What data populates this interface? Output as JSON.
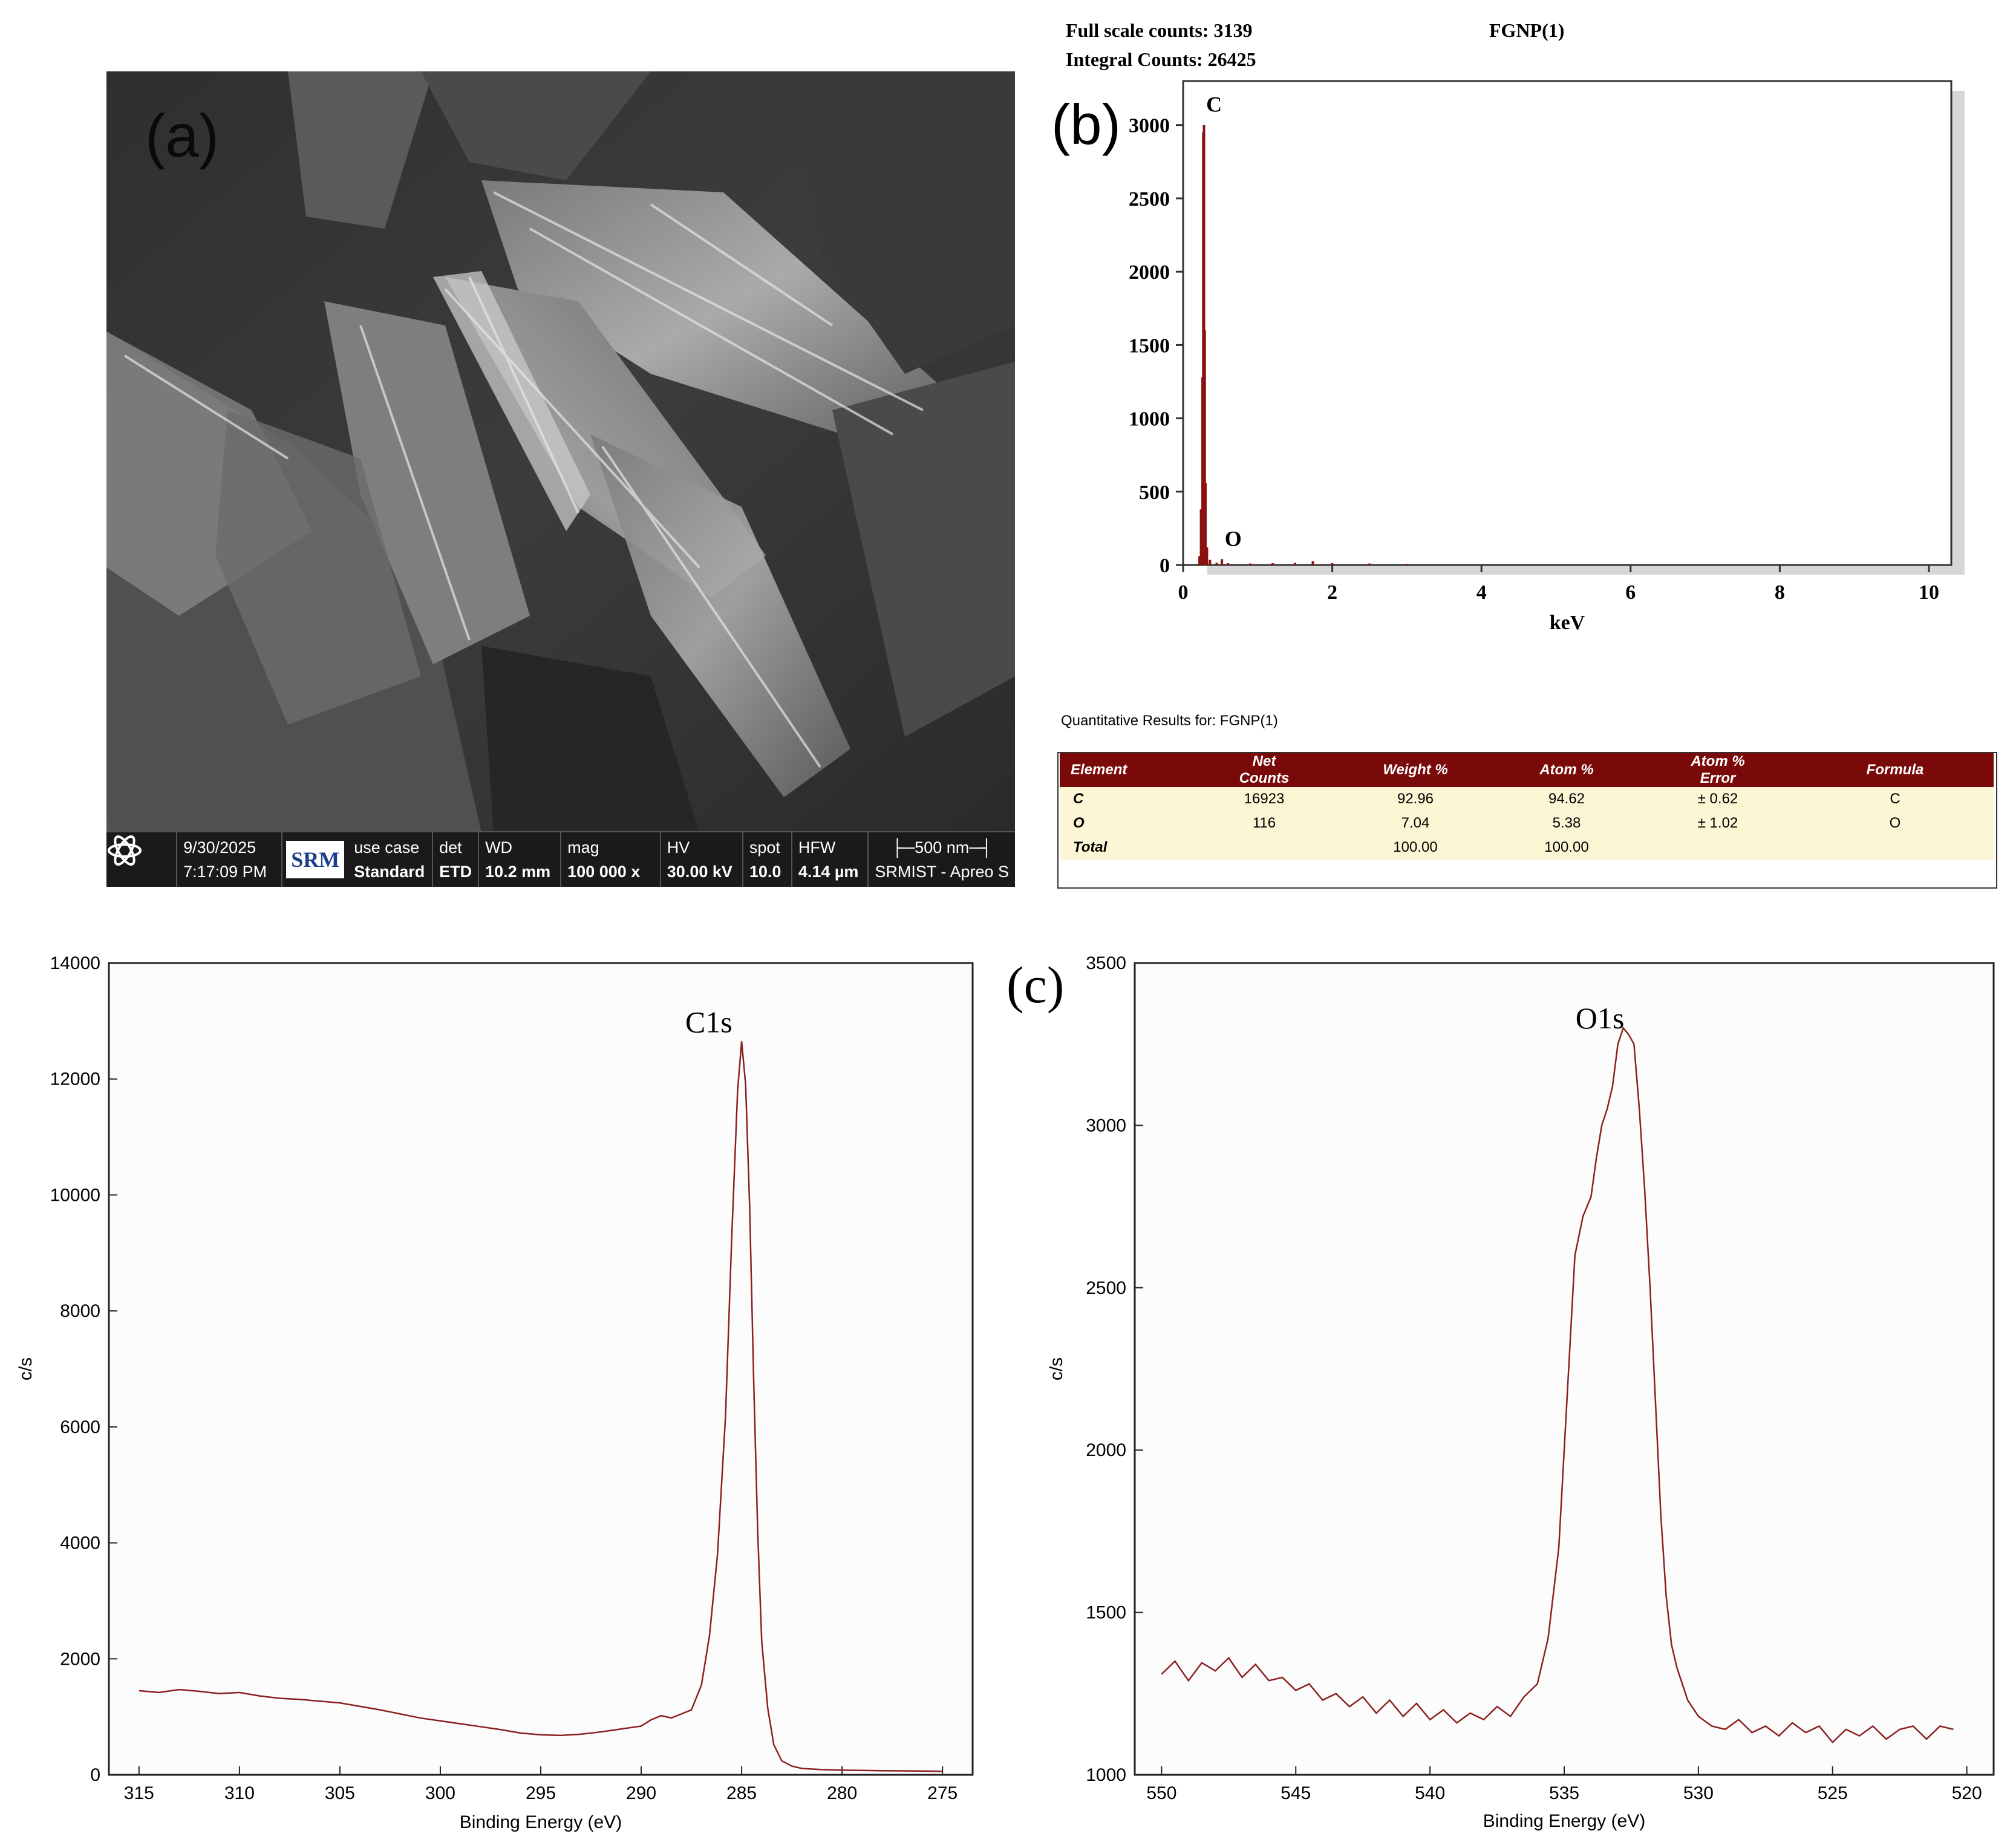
{
  "sem": {
    "panel_label": "(a)",
    "date": "9/30/2025",
    "time": "7:17:09 PM",
    "logo_text": "SRM",
    "use_case_label": "use case",
    "use_case": "Standard",
    "det_label": "det",
    "det": "ETD",
    "wd_label": "WD",
    "wd": "10.2 mm",
    "mag_label": "mag",
    "mag": "100 000 x",
    "hv_label": "HV",
    "hv": "30.00 kV",
    "spot_label": "spot",
    "spot": "10.0",
    "hfw_label": "HFW",
    "hfw": "4.14 µm",
    "scale_bar": "500 nm",
    "instrument": "SRMIST - Apreo S"
  },
  "eds_header": {
    "full_scale": "Full scale counts: 3139",
    "integral": "Integral Counts: 26425",
    "sample": "FGNP(1)",
    "panel_label": "(b)"
  },
  "table": {
    "caption": "Quantitative Results for: FGNP(1)",
    "headers": [
      {
        "l1": "Element",
        "l2": ""
      },
      {
        "l1": "Net",
        "l2": "Counts"
      },
      {
        "l1": "Weight %",
        "l2": ""
      },
      {
        "l1": "Atom %",
        "l2": ""
      },
      {
        "l1": "Atom %",
        "l2": "Error"
      },
      {
        "l1": "Formula",
        "l2": ""
      }
    ],
    "rows": [
      [
        "C",
        "16923",
        "92.96",
        "94.62",
        "± 0.62",
        "C"
      ],
      [
        "O",
        "116",
        "7.04",
        "5.38",
        "± 1.02",
        "O"
      ],
      [
        "Total",
        "",
        "100.00",
        "100.00",
        "",
        ""
      ]
    ]
  },
  "xps_panel_label": "(c)",
  "chart_data": [
    {
      "type": "bar",
      "panel": "(b)",
      "xlabel": "keV",
      "ylabel": "",
      "xlim": [
        0,
        10.3
      ],
      "ylim": [
        0,
        3300
      ],
      "xticks": [
        0,
        2,
        4,
        6,
        8,
        10
      ],
      "yticks": [
        0,
        500,
        1000,
        1500,
        2000,
        2500,
        3000
      ],
      "peaks": [
        {
          "label": "C",
          "x": 0.277,
          "y": 3000
        },
        {
          "label": "O",
          "x": 0.525,
          "y": 40
        }
      ],
      "series": [
        {
          "color": "#8b1010",
          "x": [
            0.19,
            0.22,
            0.24,
            0.26,
            0.27,
            0.28,
            0.29,
            0.3,
            0.32,
            0.36,
            0.45,
            0.52,
            0.6,
            0.9,
            1.2,
            1.5,
            1.74,
            2.0,
            2.5,
            3.0,
            4.0,
            6.0,
            8.0,
            10.0
          ],
          "values": [
            0,
            60,
            380,
            1280,
            2950,
            3000,
            1600,
            560,
            120,
            35,
            15,
            40,
            12,
            10,
            12,
            14,
            25,
            12,
            10,
            8,
            6,
            4,
            3,
            2
          ]
        }
      ]
    },
    {
      "type": "line",
      "panel": "XPS C1s",
      "xlabel": "Binding Energy (eV)",
      "ylabel": "c/s",
      "xlim": [
        316.5,
        273.5
      ],
      "ylim": [
        0,
        14000
      ],
      "xticks": [
        315,
        310,
        305,
        300,
        295,
        290,
        285,
        280,
        275
      ],
      "yticks": [
        0,
        2000,
        4000,
        6000,
        8000,
        10000,
        12000,
        14000
      ],
      "annotations": [
        {
          "text": "C1s",
          "x": 285.7,
          "y": 12700
        }
      ],
      "series": [
        {
          "color": "#8b2020",
          "x": [
            315,
            314,
            313,
            312,
            311,
            310,
            309,
            308,
            307,
            306,
            305,
            304,
            303,
            302,
            301,
            300,
            299,
            298,
            297,
            296,
            295,
            294,
            293,
            292,
            291,
            290,
            289.5,
            289,
            288.5,
            288,
            287.5,
            287,
            286.6,
            286.2,
            285.8,
            285.5,
            285.2,
            285.0,
            284.8,
            284.6,
            284.4,
            284.2,
            284.0,
            283.7,
            283.4,
            283.0,
            282.5,
            282,
            281,
            280,
            278,
            276,
            275
          ],
          "values": [
            1450,
            1420,
            1470,
            1440,
            1400,
            1420,
            1360,
            1320,
            1300,
            1270,
            1240,
            1180,
            1120,
            1050,
            980,
            930,
            880,
            830,
            780,
            720,
            690,
            680,
            700,
            740,
            790,
            840,
            950,
            1020,
            980,
            1050,
            1120,
            1550,
            2400,
            3800,
            6200,
            9200,
            11800,
            12650,
            11900,
            9800,
            6800,
            4200,
            2300,
            1150,
            520,
            240,
            150,
            110,
            90,
            80,
            70,
            65,
            60
          ]
        }
      ]
    },
    {
      "type": "line",
      "panel": "XPS O1s",
      "xlabel": "Binding Energy (eV)",
      "ylabel": "c/s",
      "xlim": [
        551,
        519
      ],
      "ylim": [
        1000,
        3500
      ],
      "xticks": [
        550,
        545,
        540,
        535,
        530,
        525,
        520
      ],
      "yticks": [
        1000,
        1500,
        2000,
        2500,
        3000,
        3500
      ],
      "annotations": [
        {
          "text": "O1s",
          "x": 533.0,
          "y": 3280
        }
      ],
      "series": [
        {
          "color": "#8b2020",
          "x": [
            550,
            549.5,
            549,
            548.5,
            548,
            547.5,
            547,
            546.5,
            546,
            545.5,
            545,
            544.5,
            544,
            543.5,
            543,
            542.5,
            542,
            541.5,
            541,
            540.5,
            540,
            539.5,
            539,
            538.5,
            538,
            537.5,
            537,
            536.5,
            536,
            535.6,
            535.2,
            534.9,
            534.6,
            534.3,
            534.0,
            533.8,
            533.6,
            533.4,
            533.2,
            533.0,
            532.8,
            532.6,
            532.4,
            532.2,
            532.0,
            531.8,
            531.6,
            531.4,
            531.2,
            531.0,
            530.8,
            530.6,
            530.4,
            530.0,
            529.5,
            529,
            528.5,
            528,
            527.5,
            527,
            526.5,
            526,
            525.5,
            525,
            524.5,
            524,
            523.5,
            523,
            522.5,
            522,
            521.5,
            521,
            520.5
          ],
          "values": [
            1310,
            1350,
            1290,
            1345,
            1320,
            1360,
            1300,
            1340,
            1290,
            1300,
            1260,
            1280,
            1230,
            1250,
            1210,
            1240,
            1190,
            1230,
            1180,
            1220,
            1170,
            1200,
            1160,
            1190,
            1170,
            1210,
            1180,
            1240,
            1280,
            1420,
            1700,
            2150,
            2600,
            2720,
            2780,
            2900,
            3000,
            3050,
            3120,
            3250,
            3300,
            3280,
            3250,
            3050,
            2800,
            2500,
            2150,
            1800,
            1550,
            1400,
            1330,
            1280,
            1230,
            1180,
            1150,
            1140,
            1170,
            1130,
            1150,
            1120,
            1160,
            1130,
            1150,
            1100,
            1140,
            1120,
            1150,
            1110,
            1140,
            1150,
            1110,
            1150,
            1140
          ]
        }
      ]
    }
  ]
}
